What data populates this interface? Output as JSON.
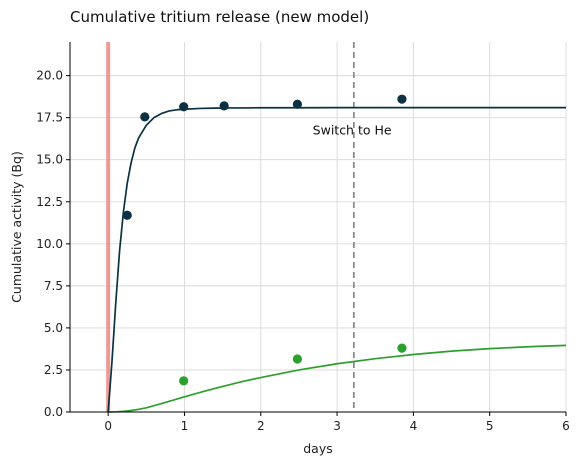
{
  "chart_data": {
    "type": "line",
    "title": "Cumulative tritium release (new model)",
    "xlabel": "days",
    "ylabel": "Cumulative activity (Bq)",
    "xlim": [
      -0.5,
      6
    ],
    "ylim": [
      0,
      22
    ],
    "xticks": [
      0,
      1,
      2,
      3,
      4,
      5,
      6
    ],
    "xtick_labels": [
      "0",
      "1",
      "2",
      "3",
      "4",
      "5",
      "6"
    ],
    "yticks": [
      0,
      2.5,
      5,
      7.5,
      10,
      12.5,
      15,
      17.5,
      20
    ],
    "ytick_labels": [
      "0.0",
      "2.5",
      "5.0",
      "7.5",
      "10.0",
      "12.5",
      "15.0",
      "17.5",
      "20.0"
    ],
    "grid": true,
    "colors": {
      "dark": "#0b3142",
      "green": "#2ca02c",
      "vline": "#f08a80",
      "switch": "#808080",
      "grid": "#d9d9d9"
    },
    "series": [
      {
        "style": "line",
        "color": "#0b3142",
        "x": [
          0,
          0.05,
          0.1,
          0.15,
          0.2,
          0.25,
          0.3,
          0.35,
          0.4,
          0.5,
          0.6,
          0.7,
          0.8,
          0.9,
          1.0,
          1.2,
          1.4,
          1.6,
          1.8,
          2.0,
          2.5,
          3.0,
          4.0,
          5.0,
          6.0
        ],
        "y": [
          0,
          3.0,
          6.5,
          9.6,
          11.9,
          13.6,
          14.8,
          15.7,
          16.3,
          17.05,
          17.5,
          17.75,
          17.9,
          17.97,
          18.0,
          18.05,
          18.07,
          18.08,
          18.08,
          18.09,
          18.09,
          18.1,
          18.1,
          18.1,
          18.1
        ]
      },
      {
        "style": "line",
        "color": "#2ca02c",
        "x": [
          0,
          0.1,
          0.2,
          0.3,
          0.4,
          0.5,
          0.7,
          1.0,
          1.25,
          1.5,
          1.75,
          2.0,
          2.5,
          3.0,
          3.5,
          4.0,
          4.5,
          5.0,
          5.5,
          6.0
        ],
        "y": [
          0,
          0.01,
          0.04,
          0.09,
          0.16,
          0.25,
          0.5,
          0.9,
          1.22,
          1.52,
          1.8,
          2.05,
          2.5,
          2.87,
          3.17,
          3.42,
          3.62,
          3.77,
          3.88,
          3.96
        ]
      },
      {
        "style": "points",
        "color": "#0b3142",
        "x": [
          0.25,
          0.48,
          0.99,
          1.52,
          2.48,
          3.85
        ],
        "y": [
          11.7,
          17.55,
          18.15,
          18.2,
          18.3,
          18.6
        ]
      },
      {
        "style": "points",
        "color": "#2ca02c",
        "x": [
          0.99,
          2.48,
          3.85
        ],
        "y": [
          1.85,
          3.15,
          3.8
        ]
      }
    ],
    "vertical_lines": [
      {
        "x": 0,
        "color": "#f08a80",
        "style": "solid"
      },
      {
        "x": 3.22,
        "color": "#808080",
        "style": "dashed"
      }
    ],
    "annotations": [
      {
        "text": "Switch to He",
        "x": 2.68,
        "y": 16.5
      }
    ]
  }
}
